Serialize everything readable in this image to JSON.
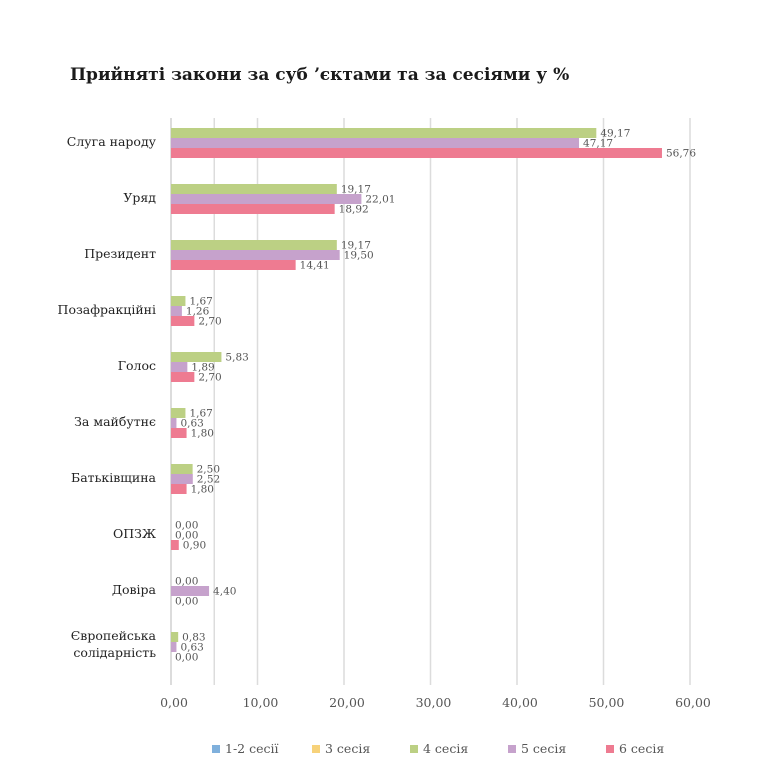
{
  "chart_data": {
    "type": "bar",
    "orientation": "horizontal",
    "title": "Прийняті закони за суб ʼєктами та за сесіями у %",
    "categories": [
      "Слуга народу",
      "Уряд",
      "Президент",
      "Позафракційні",
      "Голос",
      "За майбутнє",
      "Батьківщина",
      "ОПЗЖ",
      "Довіра",
      "Європейська солідарність"
    ],
    "series": [
      {
        "name": "1-2 сесії",
        "color": "#7fb0dc",
        "values": [
          null,
          null,
          null,
          null,
          null,
          null,
          null,
          null,
          null,
          null
        ]
      },
      {
        "name": "3 сесія",
        "color": "#f7d27a",
        "values": [
          null,
          null,
          null,
          null,
          null,
          null,
          null,
          null,
          null,
          null
        ]
      },
      {
        "name": "4 сесія",
        "color": "#bcd084",
        "values": [
          49.17,
          19.17,
          19.17,
          1.67,
          5.83,
          1.67,
          2.5,
          0.0,
          0.0,
          0.83
        ]
      },
      {
        "name": "5 сесія",
        "color": "#c6a2cc",
        "values": [
          47.17,
          22.01,
          19.5,
          1.26,
          1.89,
          0.63,
          2.52,
          0.0,
          4.4,
          0.63
        ]
      },
      {
        "name": "6 сесія",
        "color": "#ee7b91",
        "values": [
          56.76,
          18.92,
          14.41,
          2.7,
          2.7,
          1.8,
          1.8,
          0.9,
          0.0,
          0.0
        ]
      }
    ],
    "xlim": [
      0,
      60
    ],
    "xticks": [
      "0,00",
      "10,00",
      "20,00",
      "30,00",
      "40,00",
      "50,00",
      "60,00"
    ],
    "grid": true,
    "legend": "bottom"
  }
}
